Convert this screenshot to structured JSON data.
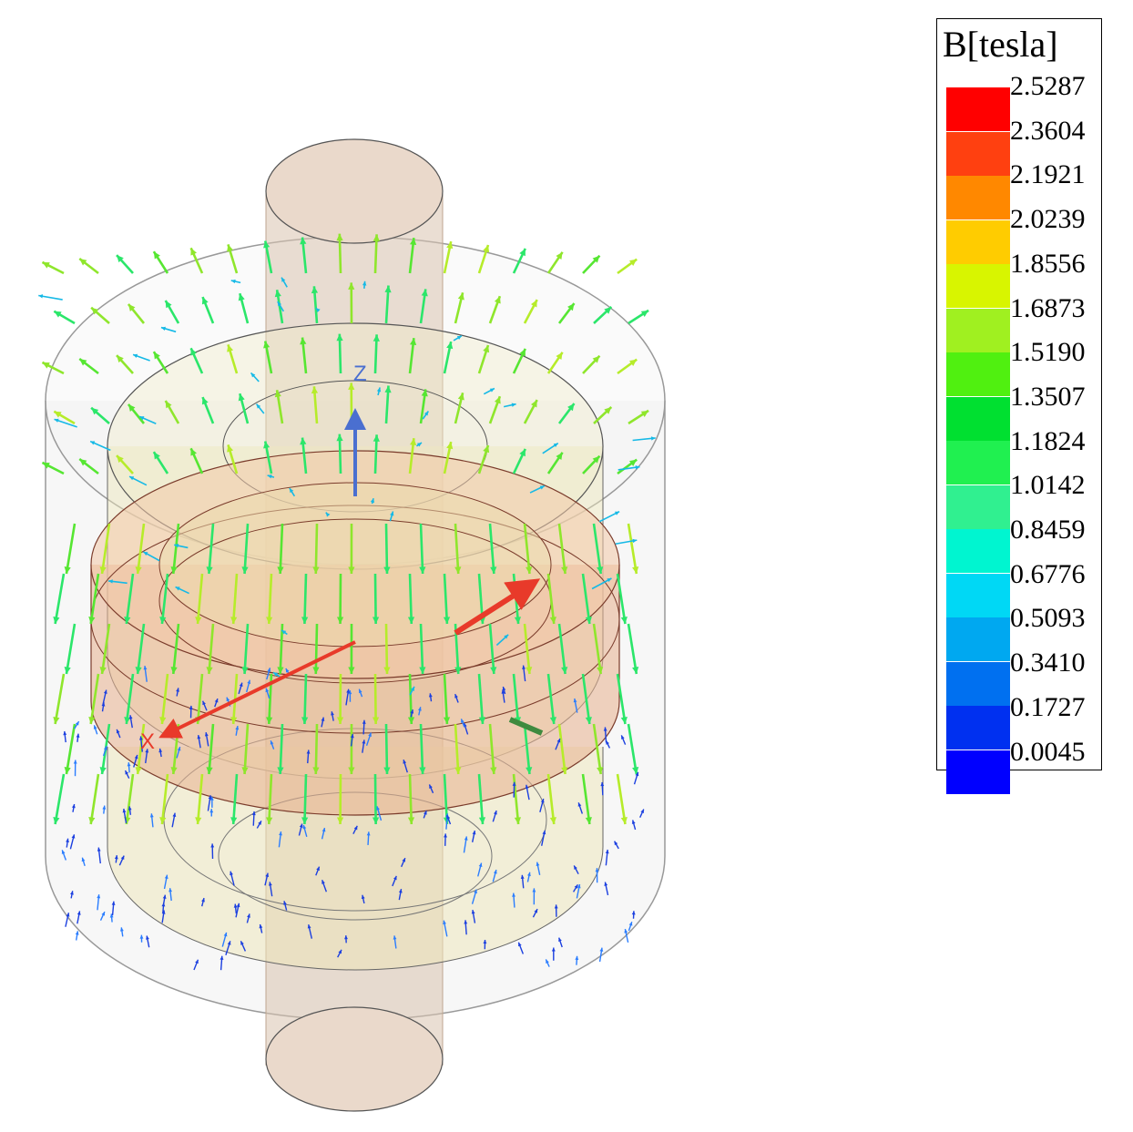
{
  "figure": {
    "axes": {
      "z_label": "Z",
      "x_label": "X",
      "z_color": "#4a6fd0",
      "x_color": "#e83a2a",
      "y_color": "#3f8a3f"
    },
    "field_arrow_colors": [
      "#2a7dff",
      "#1b3fe0",
      "#15b9e6",
      "#2ee0c8",
      "#2be66a",
      "#56e632",
      "#8fe62c",
      "#b6ec2a"
    ]
  },
  "legend": {
    "title": "B[tesla]",
    "ticks": [
      "2.5287",
      "2.3604",
      "2.1921",
      "2.0239",
      "1.8556",
      "1.6873",
      "1.5190",
      "1.3507",
      "1.1824",
      "1.0142",
      "0.8459",
      "0.6776",
      "0.5093",
      "0.3410",
      "0.1727",
      "0.0045"
    ],
    "colors": [
      "#ff0000",
      "#ff4010",
      "#ff8800",
      "#ffcc00",
      "#d8f500",
      "#a0f020",
      "#50f010",
      "#00e030",
      "#20f050",
      "#30f090",
      "#00f5d0",
      "#00d8f5",
      "#00a8f0",
      "#0070f0",
      "#0030f0",
      "#0000ff"
    ]
  }
}
